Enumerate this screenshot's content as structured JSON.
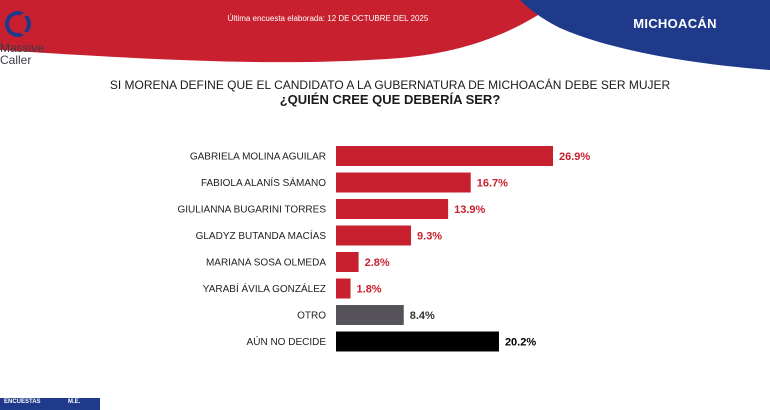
{
  "header": {
    "brand_line1": "Massive",
    "brand_line2": "Caller",
    "survey_note": "Última encuesta elaborada: 12 DE OCTUBRE DEL 2025",
    "region": "MICHOACÁN"
  },
  "colors": {
    "red": "#c8202e",
    "navy": "#1f3a8a",
    "gray": "#555359",
    "black": "#000000"
  },
  "footer": {
    "left_label": "ENCUESTAS",
    "right_label": "M.E."
  },
  "chart_data": {
    "type": "bar",
    "orientation": "horizontal",
    "title": "SI MORENA DEFINE QUE EL CANDIDATO A LA GUBERNATURA DE MICHOACÁN DEBE SER MUJER",
    "subtitle": "¿QUIÉN CREE QUE DEBERÍA SER?",
    "categories": [
      "GABRIELA MOLINA AGUILAR",
      "FABIOLA ALANÍS SÁMANO",
      "GIULIANNA BUGARINI TORRES",
      "GLADYZ BUTANDA MACÍAS",
      "MARIANA SOSA OLMEDA",
      "YARABÍ ÁVILA GONZÁLEZ",
      "OTRO",
      "AÚN NO DECIDE"
    ],
    "values": [
      26.9,
      16.7,
      13.9,
      9.3,
      2.8,
      1.8,
      8.4,
      20.2
    ],
    "data_labels": [
      "26.9%",
      "16.7%",
      "13.9%",
      "9.3%",
      "2.8%",
      "1.8%",
      "8.4%",
      "20.2%"
    ],
    "bar_colors": [
      "#c8202e",
      "#c8202e",
      "#c8202e",
      "#c8202e",
      "#c8202e",
      "#c8202e",
      "#555359",
      "#000000"
    ],
    "label_colors": [
      "#c8202e",
      "#c8202e",
      "#c8202e",
      "#c8202e",
      "#c8202e",
      "#c8202e",
      "#333333",
      "#000000"
    ],
    "xlim": [
      0,
      30
    ],
    "grid": false,
    "legend": "none"
  }
}
